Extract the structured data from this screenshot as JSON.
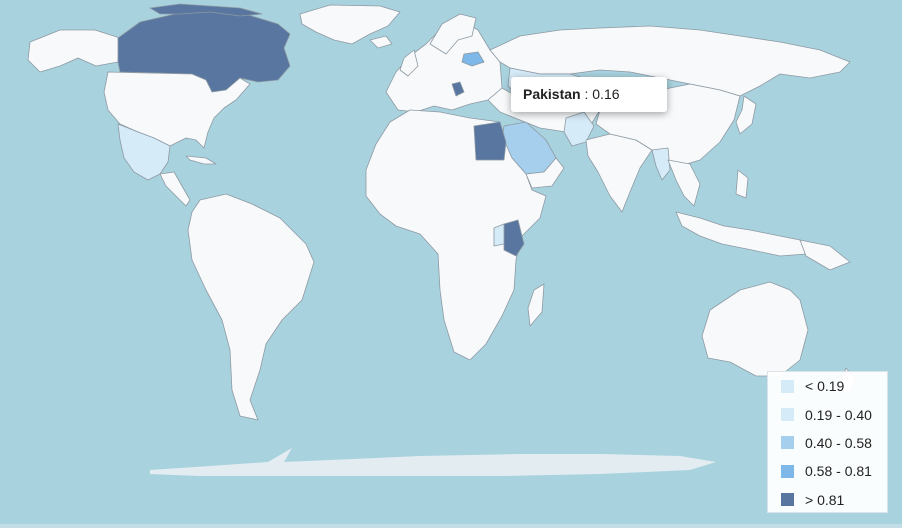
{
  "map": {
    "background": "#a9d2df",
    "land_default": "#f7f9fb",
    "border_color": "#8d9aa3",
    "antarctica_color": "#e3edf1"
  },
  "tooltip": {
    "country": "Pakistan",
    "separator": " : ",
    "value": "0.16"
  },
  "legend": {
    "items": [
      {
        "label": "< 0.19",
        "color": "#d6ebf8"
      },
      {
        "label": "0.19 - 0.40",
        "color": "#d6ebf8"
      },
      {
        "label": "0.40 - 0.58",
        "color": "#a5cfec"
      },
      {
        "label": "0.58 - 0.81",
        "color": "#7db8e8"
      },
      {
        "label": "> 0.81",
        "color": "#5876a0"
      }
    ]
  },
  "highlighted_regions": [
    {
      "name": "Canada",
      "bin": "> 0.81"
    },
    {
      "name": "Egypt",
      "bin": "> 0.81"
    },
    {
      "name": "Kenya",
      "bin": "> 0.81"
    },
    {
      "name": "Serbia",
      "bin": "> 0.81"
    },
    {
      "name": "Belarus",
      "bin": "0.58 - 0.81"
    },
    {
      "name": "Saudi Arabia",
      "bin": "0.40 - 0.58"
    },
    {
      "name": "Mexico",
      "bin": "0.19 - 0.40"
    },
    {
      "name": "Kazakhstan",
      "bin": "< 0.19"
    },
    {
      "name": "Pakistan",
      "bin": "< 0.19"
    },
    {
      "name": "Myanmar",
      "bin": "0.19 - 0.40"
    },
    {
      "name": "Uganda",
      "bin": "0.19 - 0.40"
    }
  ]
}
